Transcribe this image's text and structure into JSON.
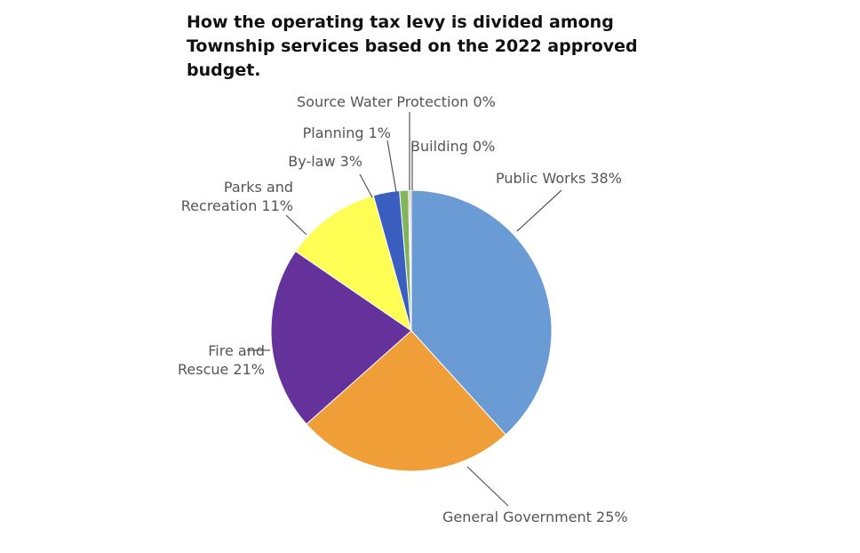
{
  "chart_data": {
    "type": "pie",
    "title_lines": [
      "How the operating tax levy is divided among",
      "Township services based on the 2022 approved",
      "budget."
    ],
    "slices": [
      {
        "name": "Public Works",
        "value": 38,
        "label_lines": [
          "Public Works 38%"
        ],
        "color": "#6a9bd4"
      },
      {
        "name": "General Government",
        "value": 25,
        "label_lines": [
          "General Government 25%"
        ],
        "color": "#ef9e38"
      },
      {
        "name": "Fire and Rescue",
        "value": 21,
        "label_lines": [
          "Fire and",
          "Rescue 21%"
        ],
        "color": "#65319b"
      },
      {
        "name": "Parks and Recreation",
        "value": 11,
        "label_lines": [
          "Parks and",
          "Recreation 11%"
        ],
        "color": "#fefe55"
      },
      {
        "name": "By-law",
        "value": 3,
        "label_lines": [
          "By-law 3%"
        ],
        "color": "#3b5fc0"
      },
      {
        "name": "Planning",
        "value": 1,
        "label_lines": [
          "Planning 1%"
        ],
        "color": "#82b45a"
      },
      {
        "name": "Source Water Protection",
        "value": 0,
        "label_lines": [
          "Source Water Protection 0%"
        ],
        "color": "#9a9a9a"
      },
      {
        "name": "Building",
        "value": 0,
        "label_lines": [
          "Building 0%"
        ],
        "color": "#d98a8a"
      }
    ]
  }
}
